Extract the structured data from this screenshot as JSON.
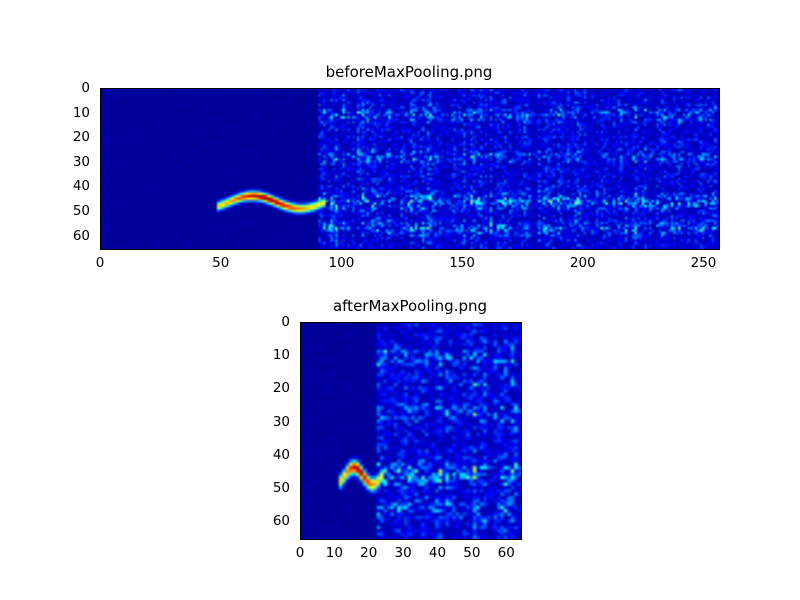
{
  "figure": {
    "background": "#ffffff"
  },
  "chart_data": [
    {
      "type": "heatmap",
      "title": "beforeMaxPooling.png",
      "colormap": "jet",
      "xlim": [
        0,
        256
      ],
      "ylim": [
        0,
        65
      ],
      "y_direction": "down",
      "xticks": [
        0,
        50,
        100,
        150,
        200,
        250
      ],
      "yticks": [
        0,
        10,
        20,
        30,
        40,
        50,
        60
      ],
      "grid": {
        "cols": 256,
        "rows": 65
      },
      "description": "Spectrogram: flat dark-navy quiet region for x<90 containing a bright red/yellow wavy chirp near y=45 between x=48 and x=92, followed by speckled blue noise with brighter horizontal bands near y=10, 27, 45 and 56",
      "render": {
        "seed": 42,
        "quiet_region": {
          "x_end": 90,
          "level": 0.02
        },
        "noise": {
          "base": 0.045,
          "speckle_amp": 0.3,
          "exponent": 2.2,
          "clamp": 0.55
        },
        "noise_bands": [
          {
            "y": 10,
            "sigma": 2.0,
            "strength": 0.55
          },
          {
            "y": 27,
            "sigma": 1.8,
            "strength": 0.5
          },
          {
            "y": 45,
            "sigma": 2.2,
            "strength": 0.85
          },
          {
            "y": 56,
            "sigma": 2.0,
            "strength": 0.6
          }
        ],
        "chirp": {
          "x_start": 48,
          "x_end": 92,
          "y_center": 45.5,
          "amplitude": 2.6,
          "cycles": 1.1,
          "phase": 0.9,
          "sigma": 1.25,
          "intensity_min": 0.62,
          "intensity_peak": 1.0,
          "intensity_center": 0.45,
          "intensity_width": 0.22
        }
      }
    },
    {
      "type": "heatmap",
      "title": "afterMaxPooling.png",
      "colormap": "jet",
      "xlim": [
        0,
        64
      ],
      "ylim": [
        0,
        65
      ],
      "y_direction": "down",
      "xticks": [
        0,
        10,
        20,
        30,
        40,
        50,
        60
      ],
      "yticks": [
        0,
        10,
        20,
        30,
        40,
        50,
        60
      ],
      "grid": {
        "cols": 64,
        "rows": 65
      },
      "description": "Max-pooled spectrogram: quiet dark-navy region for x<22 with the bright chirp compressed between x=11 and x=23 near y=45, followed by speckled blue noise with horizontal bands near y=10, 18, 27, 45 and 56",
      "render": {
        "seed": 7,
        "quiet_region": {
          "x_end": 22,
          "level": 0.02
        },
        "noise": {
          "base": 0.045,
          "speckle_amp": 0.32,
          "exponent": 2.2,
          "clamp": 0.55
        },
        "noise_bands": [
          {
            "y": 10,
            "sigma": 2.0,
            "strength": 0.5
          },
          {
            "y": 18,
            "sigma": 1.5,
            "strength": 0.3
          },
          {
            "y": 27,
            "sigma": 1.8,
            "strength": 0.5
          },
          {
            "y": 45,
            "sigma": 2.2,
            "strength": 0.85
          },
          {
            "y": 56,
            "sigma": 2.0,
            "strength": 0.6
          }
        ],
        "chirp": {
          "x_start": 11,
          "x_end": 23,
          "y_center": 45.5,
          "amplitude": 2.6,
          "cycles": 1.1,
          "phase": 0.9,
          "sigma": 1.4,
          "intensity_min": 0.62,
          "intensity_peak": 1.0,
          "intensity_center": 0.45,
          "intensity_width": 0.22
        }
      }
    }
  ]
}
